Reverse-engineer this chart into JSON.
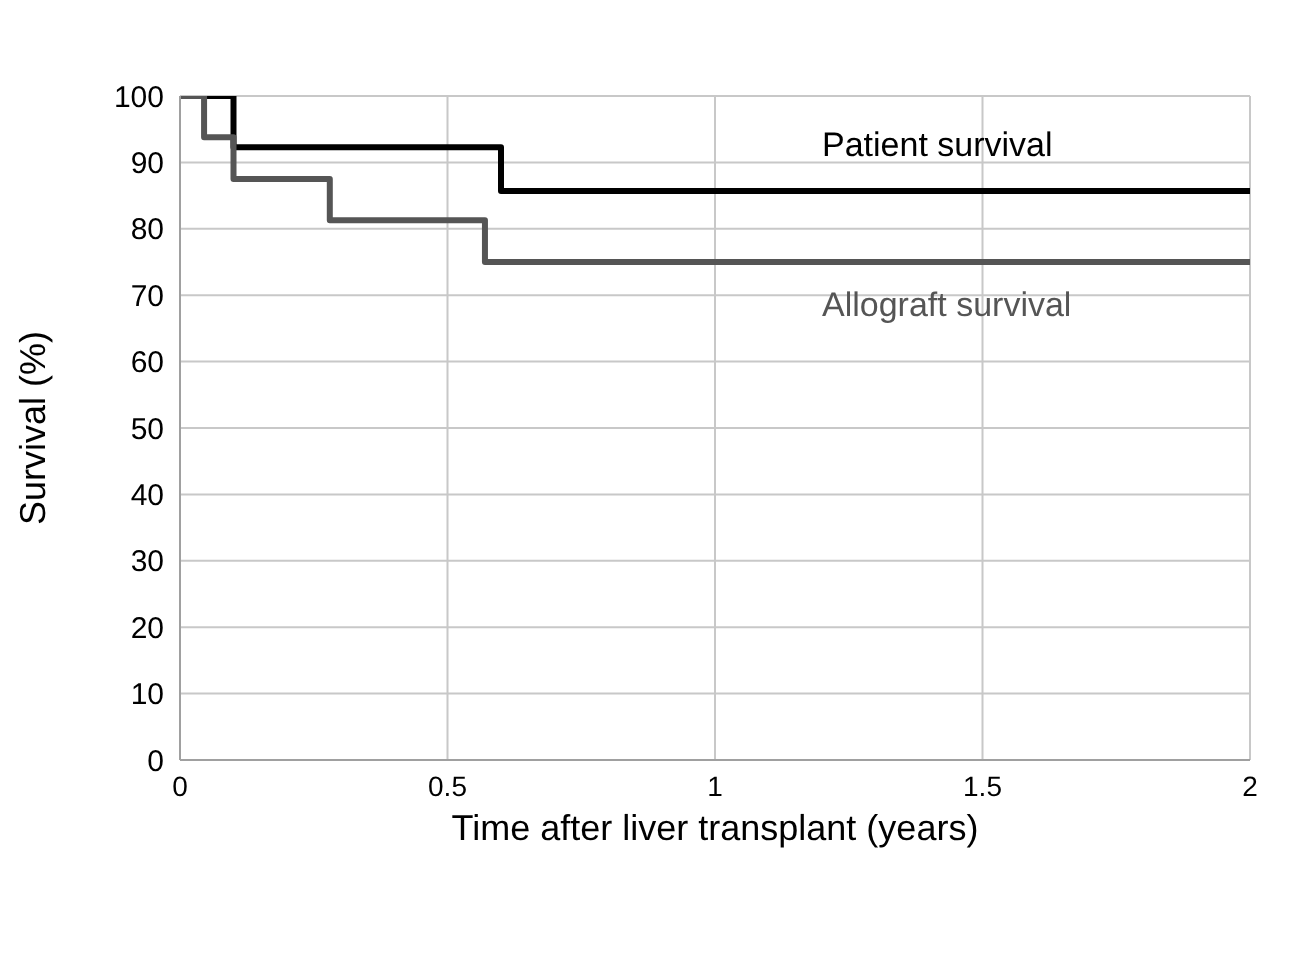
{
  "chart_data": {
    "type": "step",
    "xlabel": "Time after liver transplant (years)",
    "ylabel": "Survival (%)",
    "xlim": [
      0,
      2
    ],
    "xticks": [
      0,
      0.5,
      1,
      1.5,
      2
    ],
    "ylim": [
      0,
      100
    ],
    "yticks": [
      0,
      10,
      20,
      30,
      40,
      50,
      60,
      70,
      80,
      90,
      100
    ],
    "grid": true,
    "marker": "none",
    "line_style": "solid",
    "series": [
      {
        "name": "Patient survival",
        "color": "#000000",
        "x": [
          0,
          0.1,
          0.6,
          2
        ],
        "values": [
          100,
          92.3,
          85.7,
          85.7
        ]
      },
      {
        "name": "Allograft survival",
        "color": "#555555",
        "x": [
          0,
          0.045,
          0.1,
          0.28,
          0.57,
          2
        ],
        "values": [
          100,
          93.8,
          87.5,
          81.3,
          75,
          75
        ]
      }
    ]
  }
}
